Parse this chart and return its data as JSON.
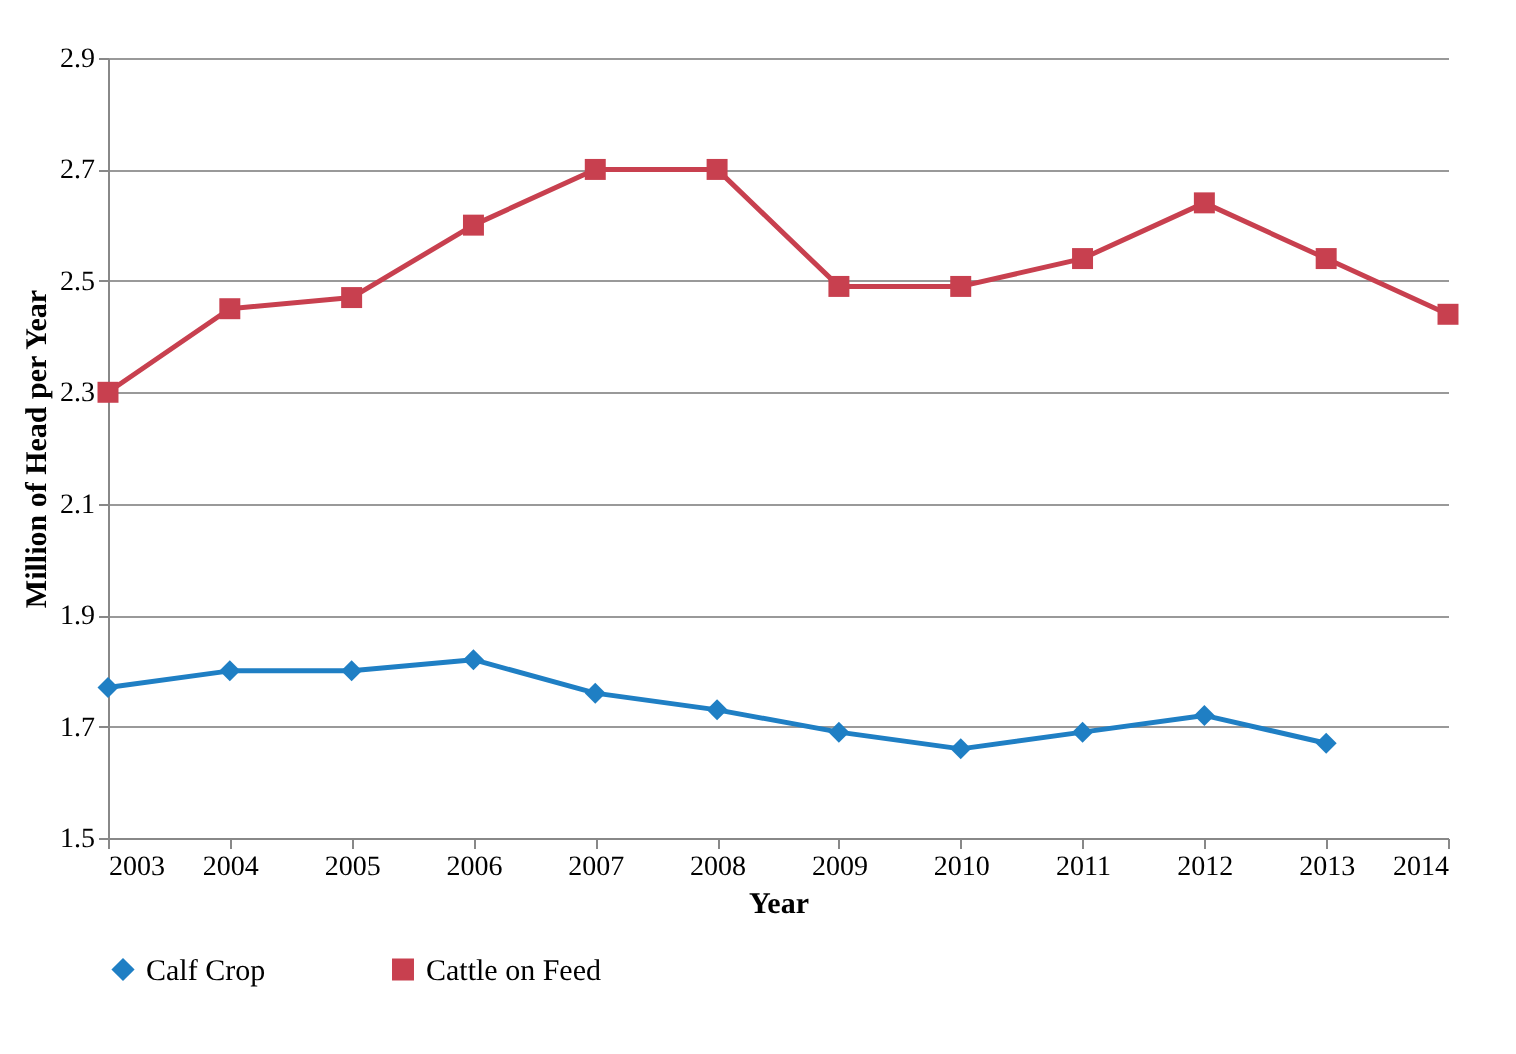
{
  "chart_data": {
    "type": "line",
    "xlabel": "Year",
    "ylabel": "Million of Head per Year",
    "x": [
      2003,
      2004,
      2005,
      2006,
      2007,
      2008,
      2009,
      2010,
      2011,
      2012,
      2013,
      2014
    ],
    "series": [
      {
        "name": "Calf Crop",
        "color": "#1f7fc4",
        "marker": "diamond",
        "values": [
          1.77,
          1.8,
          1.8,
          1.82,
          1.76,
          1.73,
          1.69,
          1.66,
          1.69,
          1.72,
          1.67,
          null
        ]
      },
      {
        "name": "Cattle on Feed",
        "color": "#c8404f",
        "marker": "square",
        "values": [
          2.3,
          2.45,
          2.47,
          2.6,
          2.7,
          2.7,
          2.49,
          2.49,
          2.54,
          2.64,
          2.54,
          2.44
        ]
      }
    ],
    "xlim": [
      2003,
      2014
    ],
    "xticks": [
      2003,
      2004,
      2005,
      2006,
      2007,
      2008,
      2009,
      2010,
      2011,
      2012,
      2013,
      2014
    ],
    "ylim": [
      1.5,
      2.9
    ],
    "yticks": [
      1.5,
      1.7,
      1.9,
      2.1,
      2.3,
      2.5,
      2.7,
      2.9
    ],
    "grid": "y",
    "legend": "bottom",
    "line_style": "solid"
  }
}
